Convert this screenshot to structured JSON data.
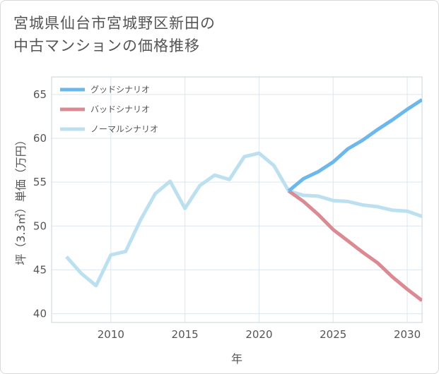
{
  "title": {
    "line1": "宮城県仙台市宮城野区新田の",
    "line2": "中古マンションの価格推移"
  },
  "colors": {
    "good": "#6cb8ec",
    "bad": "#dc8a92",
    "normal": "#bde0f1",
    "grid": "#dbe6ee",
    "text": "#555555"
  },
  "chart_data": {
    "type": "line",
    "xlabel": "年",
    "ylabel": "坪（3.3㎡）単価（万円）",
    "xlim": [
      2006,
      2031
    ],
    "ylim": [
      39,
      67
    ],
    "x_ticks": [
      2010,
      2015,
      2020,
      2025,
      2030
    ],
    "y_ticks": [
      40,
      45,
      50,
      55,
      60,
      65
    ],
    "grid": true,
    "legend_position": "top-left",
    "series": [
      {
        "name": "グッドシナリオ",
        "color": "#6cb8ec",
        "x": [
          2022,
          2023,
          2024,
          2025,
          2026,
          2027,
          2028,
          2029,
          2030,
          2031
        ],
        "y": [
          54.0,
          55.4,
          56.2,
          57.3,
          58.8,
          59.8,
          61.0,
          62.1,
          63.3,
          64.4
        ]
      },
      {
        "name": "バッドシナリオ",
        "color": "#dc8a92",
        "x": [
          2022,
          2023,
          2024,
          2025,
          2026,
          2027,
          2028,
          2029,
          2030,
          2031
        ],
        "y": [
          54.0,
          52.8,
          51.3,
          49.6,
          48.3,
          47.0,
          45.8,
          44.2,
          42.8,
          41.5
        ]
      },
      {
        "name": "ノーマルシナリオ",
        "color": "#bde0f1",
        "x": [
          2007,
          2008,
          2009,
          2010,
          2011,
          2012,
          2013,
          2014,
          2015,
          2016,
          2017,
          2018,
          2019,
          2020,
          2021,
          2022,
          2023,
          2024,
          2025,
          2026,
          2027,
          2028,
          2029,
          2030,
          2031
        ],
        "y": [
          46.5,
          44.6,
          43.2,
          46.7,
          47.1,
          50.7,
          53.7,
          55.1,
          52.0,
          54.6,
          55.8,
          55.3,
          57.9,
          58.3,
          56.9,
          54.0,
          53.5,
          53.4,
          52.9,
          52.8,
          52.4,
          52.2,
          51.8,
          51.7,
          51.1
        ]
      }
    ]
  }
}
